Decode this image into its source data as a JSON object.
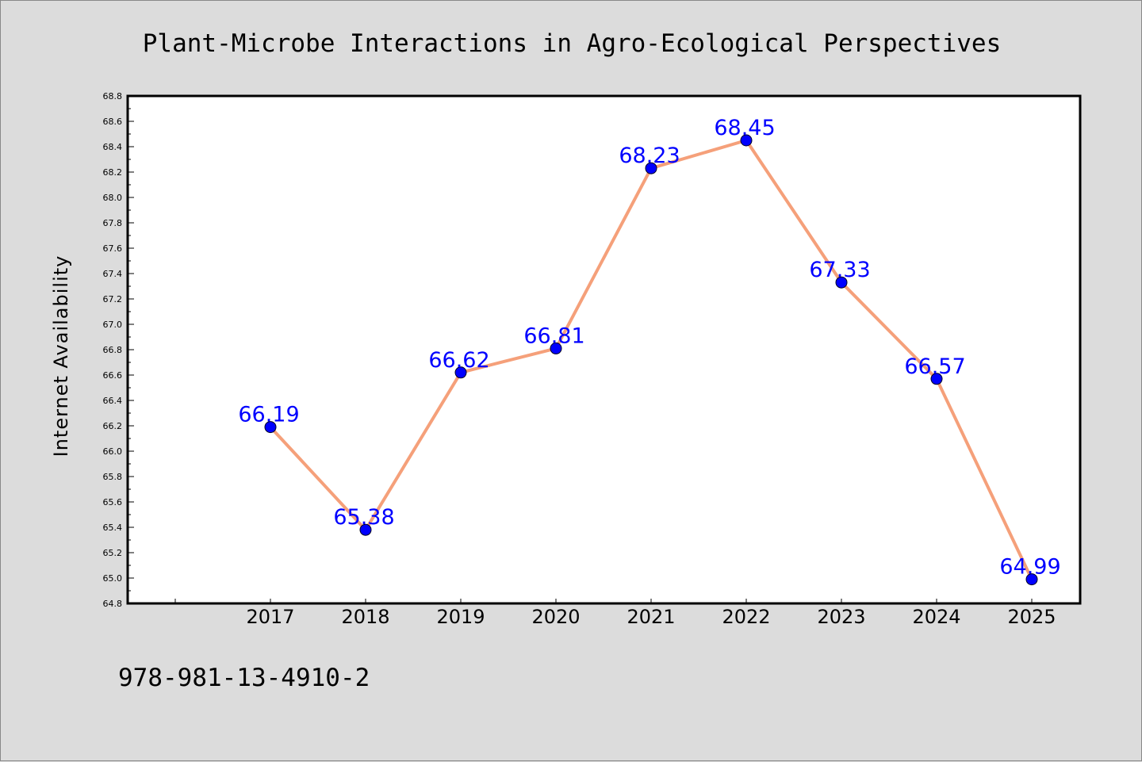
{
  "chart_data": {
    "type": "line",
    "title": "Plant-Microbe Interactions in Agro-Ecological Perspectives",
    "xlabel": "",
    "ylabel": "Internet Availability",
    "categories": [
      "2017",
      "2018",
      "2019",
      "2020",
      "2021",
      "2022",
      "2023",
      "2024",
      "2025"
    ],
    "series": [
      {
        "values": [
          66.19,
          65.38,
          66.62,
          66.81,
          68.23,
          68.45,
          67.33,
          66.57,
          64.99
        ],
        "labels": [
          "66.19",
          "65.38",
          "66.62",
          "66.81",
          "68.23",
          "68.45",
          "67.33",
          "66.57",
          "64.99"
        ]
      }
    ],
    "ylim": [
      64.8,
      68.8
    ],
    "yticks": [
      "64.8",
      "65.0",
      "65.2",
      "65.4",
      "65.6",
      "65.8",
      "66.0",
      "66.2",
      "66.4",
      "66.6",
      "66.8",
      "67.0",
      "67.2",
      "67.4",
      "67.6",
      "67.8",
      "68.0",
      "68.2",
      "68.4",
      "68.6",
      "68.8"
    ],
    "grid": false,
    "legend": "none",
    "colors": {
      "line": "#f5a07a",
      "marker": "#0000ff",
      "label": "#0000ff",
      "plot_bg": "#ffffff",
      "figure_bg": "#dcdcdc"
    }
  },
  "footer": {
    "isbn": "978-981-13-4910-2"
  }
}
